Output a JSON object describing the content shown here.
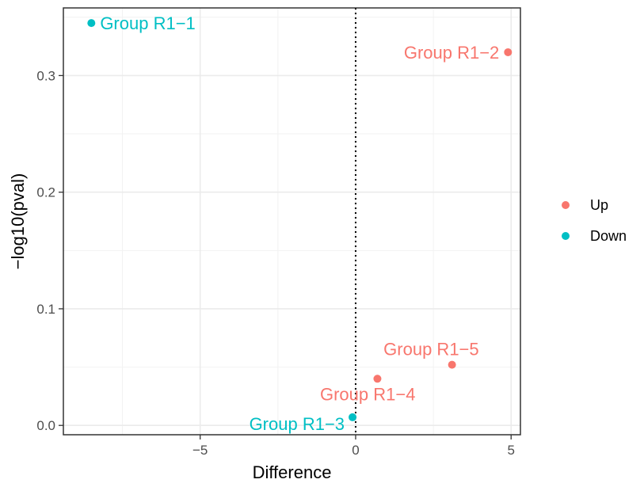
{
  "chart_data": {
    "type": "scatter",
    "xlabel": "Difference",
    "ylabel": "−log10(pval)",
    "xlim": [
      -9.4,
      5.3
    ],
    "ylim": [
      -0.008,
      0.358
    ],
    "x_ticks": [
      -5,
      0,
      5
    ],
    "x_tick_labels": [
      "−5",
      "0",
      "5"
    ],
    "y_ticks": [
      0.0,
      0.1,
      0.2,
      0.3
    ],
    "y_tick_labels": [
      "0.0",
      "0.1",
      "0.2",
      "0.3"
    ],
    "grid": true,
    "reference_line": {
      "x": 0,
      "style": "dotted"
    },
    "legend_position": "right",
    "series": [
      {
        "name": "Up",
        "color": "#F8766D",
        "points": [
          {
            "label": "Group R1−2",
            "x": 4.9,
            "y": 0.32
          },
          {
            "label": "Group R1−5",
            "x": 3.1,
            "y": 0.052
          },
          {
            "label": "Group R1−4",
            "x": 0.7,
            "y": 0.04
          }
        ]
      },
      {
        "name": "Down",
        "color": "#00BFC4",
        "points": [
          {
            "label": "Group R1−1",
            "x": -8.5,
            "y": 0.345
          },
          {
            "label": "Group R1−3",
            "x": -0.1,
            "y": 0.007
          }
        ]
      }
    ]
  }
}
